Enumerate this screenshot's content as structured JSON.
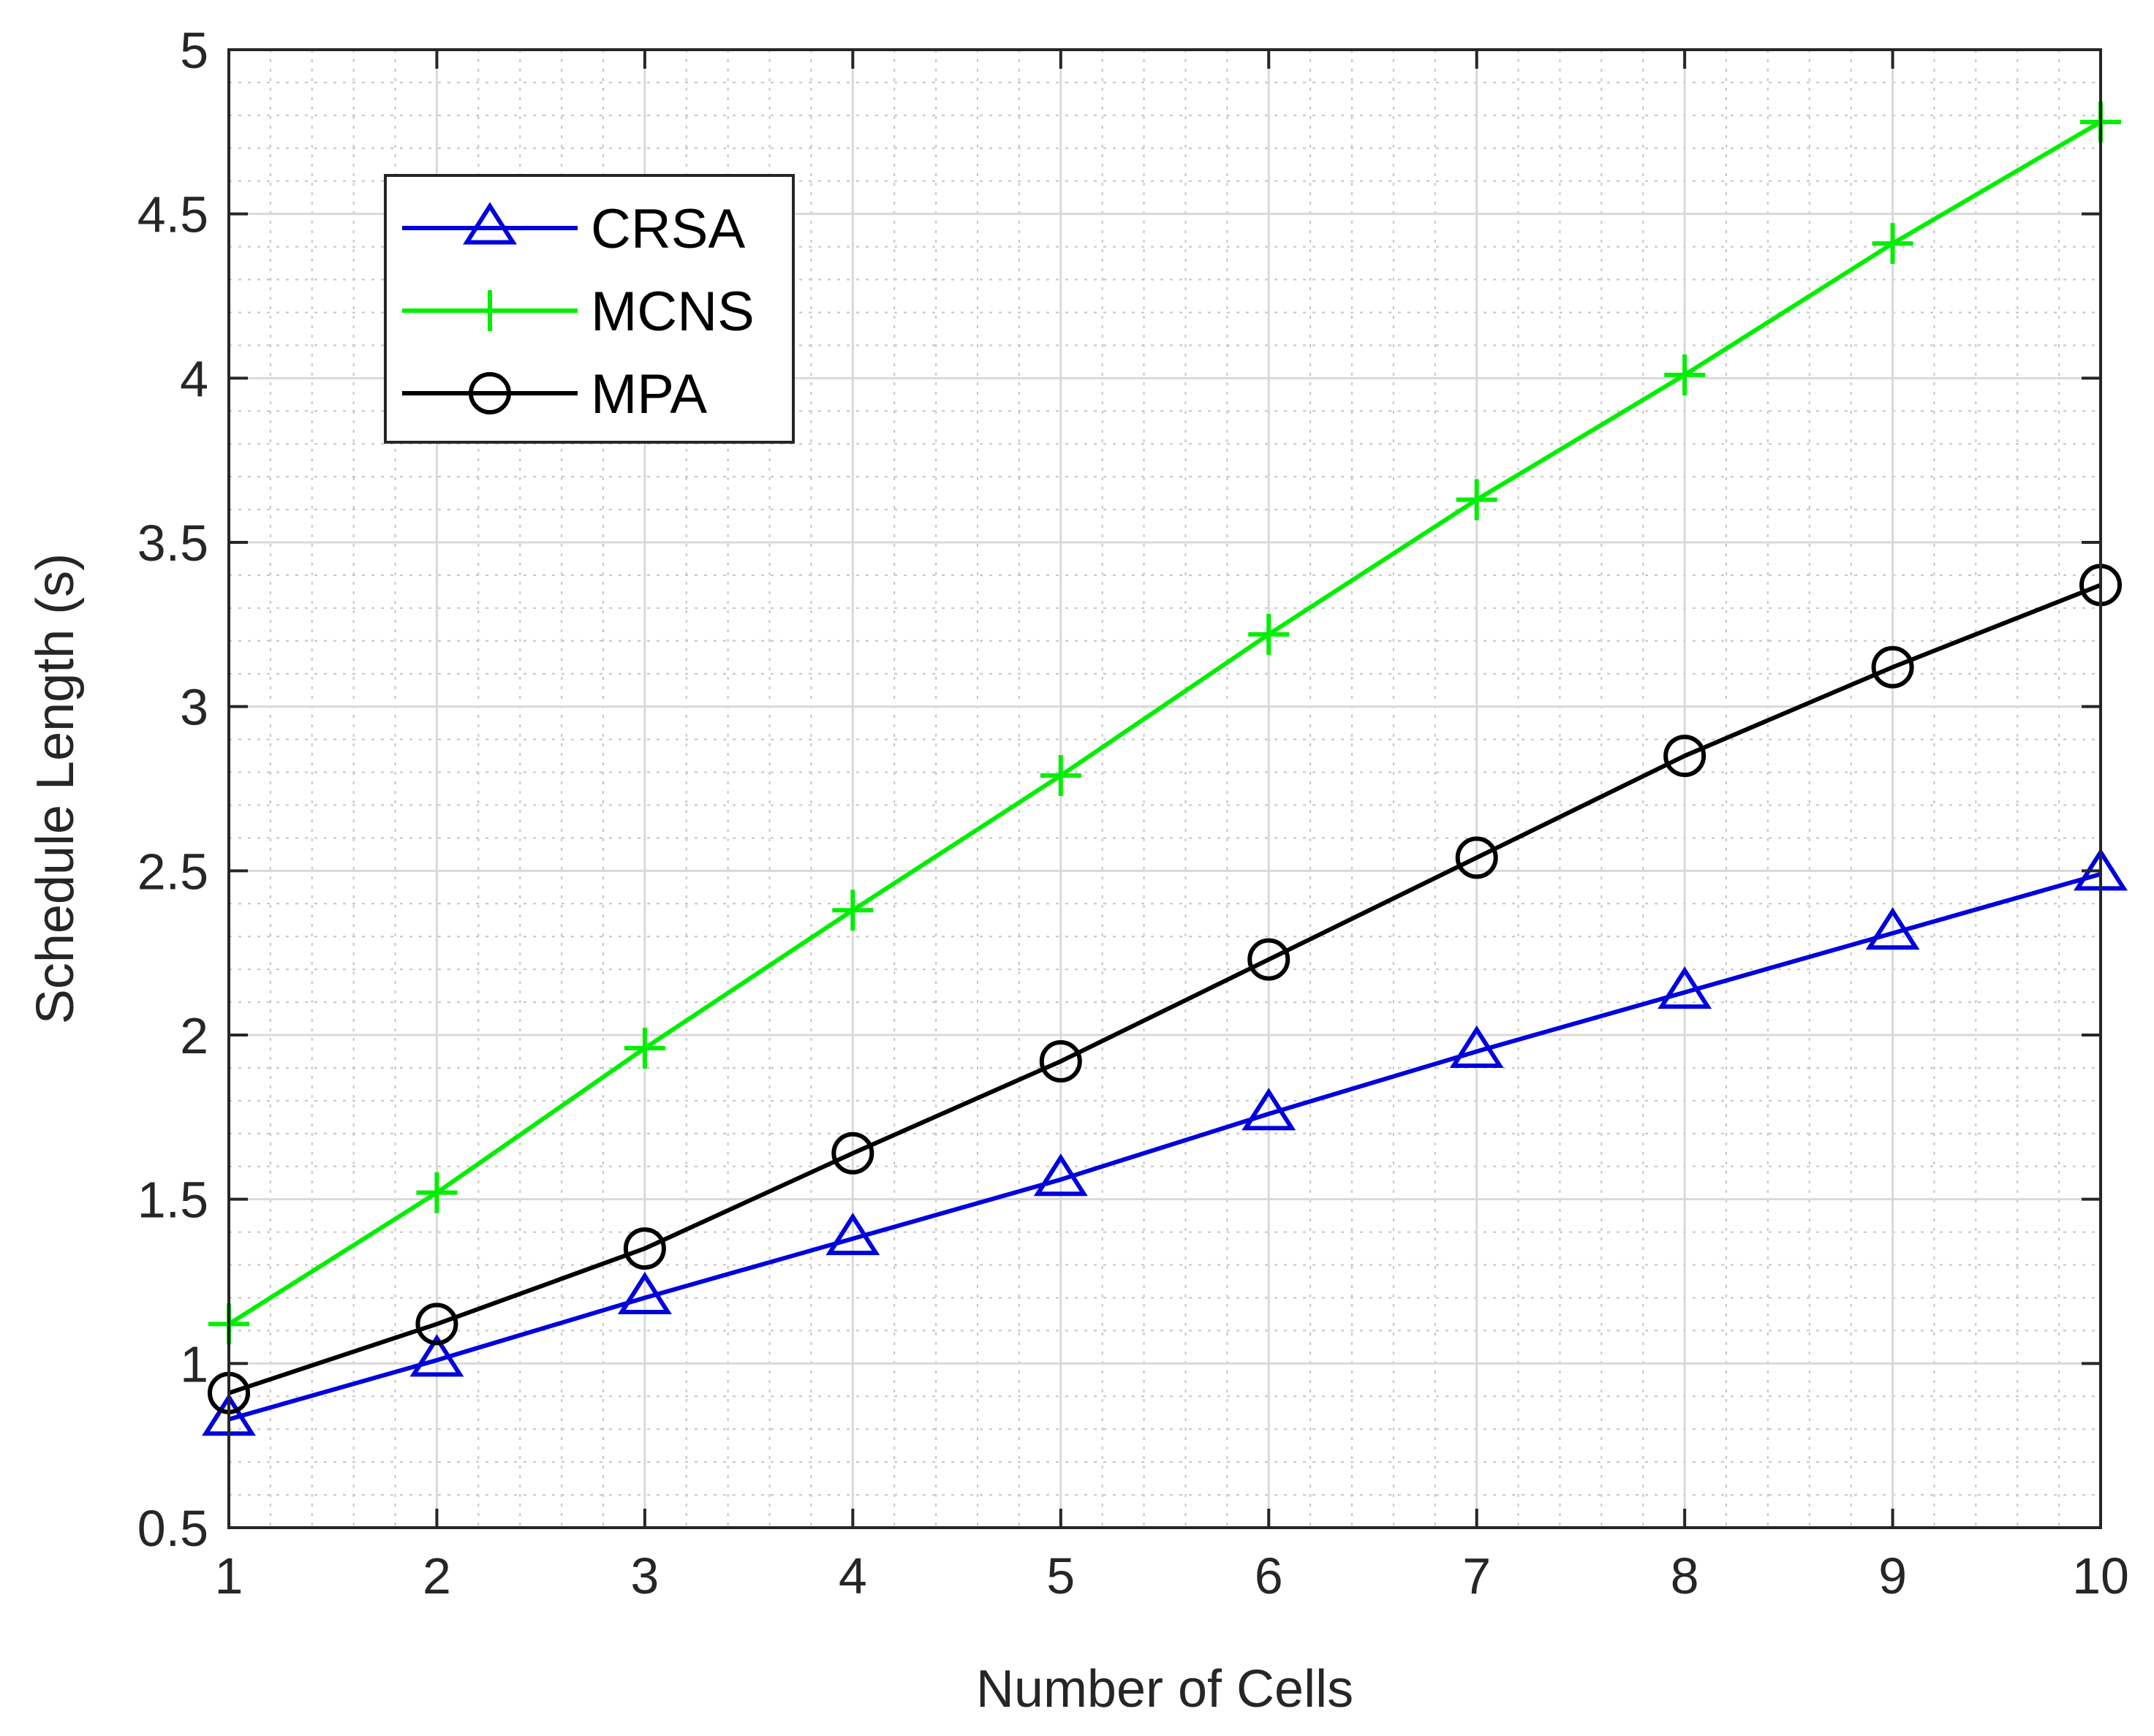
{
  "chart_data": {
    "type": "line",
    "title": "",
    "xlabel": "Number of Cells",
    "ylabel": "Schedule Length (s)",
    "xlim": [
      1,
      10
    ],
    "ylim": [
      0.5,
      5
    ],
    "grid": true,
    "minor_grid": true,
    "legend_position": "top-left",
    "x_ticks": [
      "1",
      "2",
      "3",
      "4",
      "5",
      "6",
      "7",
      "8",
      "9",
      "10"
    ],
    "y_ticks": [
      "0.5",
      "1",
      "1.5",
      "2",
      "2.5",
      "3",
      "3.5",
      "4",
      "4.5",
      "5"
    ],
    "x": [
      1,
      2,
      3,
      4,
      5,
      6,
      7,
      8,
      9,
      10
    ],
    "series": [
      {
        "name": "CRSA",
        "color": "#0000dd",
        "marker": "triangle",
        "values": [
          0.83,
          1.01,
          1.2,
          1.38,
          1.56,
          1.76,
          1.95,
          2.13,
          2.31,
          2.49
        ]
      },
      {
        "name": "MCNS",
        "color": "#00ee00",
        "marker": "plus",
        "values": [
          1.12,
          1.52,
          1.96,
          2.38,
          2.79,
          3.22,
          3.63,
          4.01,
          4.41,
          4.78
        ]
      },
      {
        "name": "MPA",
        "color": "#000000",
        "marker": "circle",
        "values": [
          0.91,
          1.12,
          1.35,
          1.64,
          1.92,
          2.23,
          2.54,
          2.85,
          3.12,
          3.37
        ]
      }
    ]
  }
}
